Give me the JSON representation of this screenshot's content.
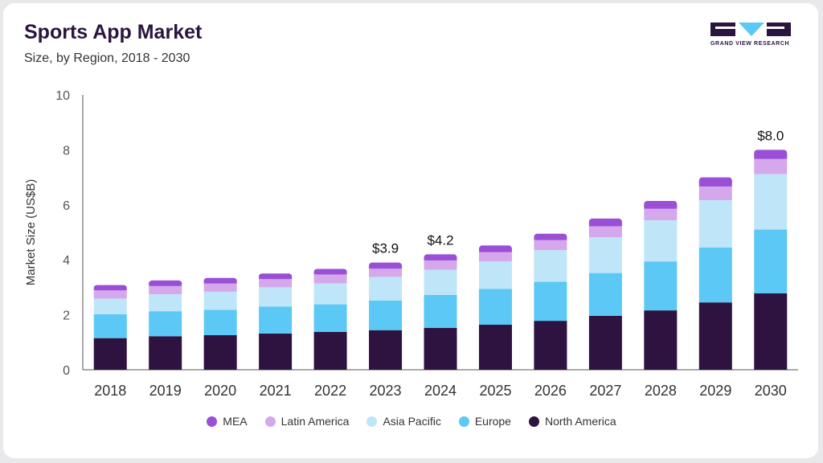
{
  "header": {
    "title": "Sports App Market",
    "subtitle": "Size, by Region, 2018 - 2030"
  },
  "logo": {
    "text": "GRAND VIEW RESEARCH",
    "icon": "grand-view-research-logo"
  },
  "colors": {
    "MEA": "#9a4fd6",
    "Latin America": "#d4a8ea",
    "Asia Pacific": "#bfe6f8",
    "Europe": "#5bc8f5",
    "North America": "#2e1240"
  },
  "chart_data": {
    "type": "bar",
    "stacked": true,
    "categories": [
      "2018",
      "2019",
      "2020",
      "2021",
      "2022",
      "2023",
      "2024",
      "2025",
      "2026",
      "2027",
      "2028",
      "2029",
      "2030"
    ],
    "series": [
      {
        "name": "North America",
        "values": [
          1.15,
          1.22,
          1.26,
          1.32,
          1.38,
          1.44,
          1.52,
          1.64,
          1.78,
          1.96,
          2.16,
          2.45,
          2.78
        ]
      },
      {
        "name": "Europe",
        "values": [
          0.87,
          0.91,
          0.92,
          0.98,
          1.0,
          1.08,
          1.2,
          1.3,
          1.42,
          1.56,
          1.78,
          2.0,
          2.32
        ]
      },
      {
        "name": "Asia Pacific",
        "values": [
          0.57,
          0.62,
          0.66,
          0.7,
          0.76,
          0.86,
          0.92,
          1.0,
          1.15,
          1.3,
          1.5,
          1.72,
          2.02
        ]
      },
      {
        "name": "Latin America",
        "values": [
          0.3,
          0.3,
          0.3,
          0.3,
          0.33,
          0.3,
          0.34,
          0.34,
          0.37,
          0.4,
          0.42,
          0.5,
          0.55
        ]
      },
      {
        "name": "MEA",
        "values": [
          0.19,
          0.2,
          0.2,
          0.2,
          0.2,
          0.22,
          0.22,
          0.24,
          0.23,
          0.28,
          0.28,
          0.33,
          0.33
        ]
      }
    ],
    "totals_labels": [
      {
        "category": "2023",
        "label": "$3.9",
        "value": 3.9
      },
      {
        "category": "2024",
        "label": "$4.2",
        "value": 4.2
      },
      {
        "category": "2030",
        "label": "$8.0",
        "value": 8.0
      }
    ],
    "ylabel": "Market Size (US$B)",
    "xlabel": "",
    "ylim": [
      0,
      10
    ],
    "yticks": [
      0,
      2,
      4,
      6,
      8,
      10
    ],
    "grid": false,
    "legend_position": "bottom",
    "legend_order": [
      "MEA",
      "Latin America",
      "Asia Pacific",
      "Europe",
      "North America"
    ]
  }
}
